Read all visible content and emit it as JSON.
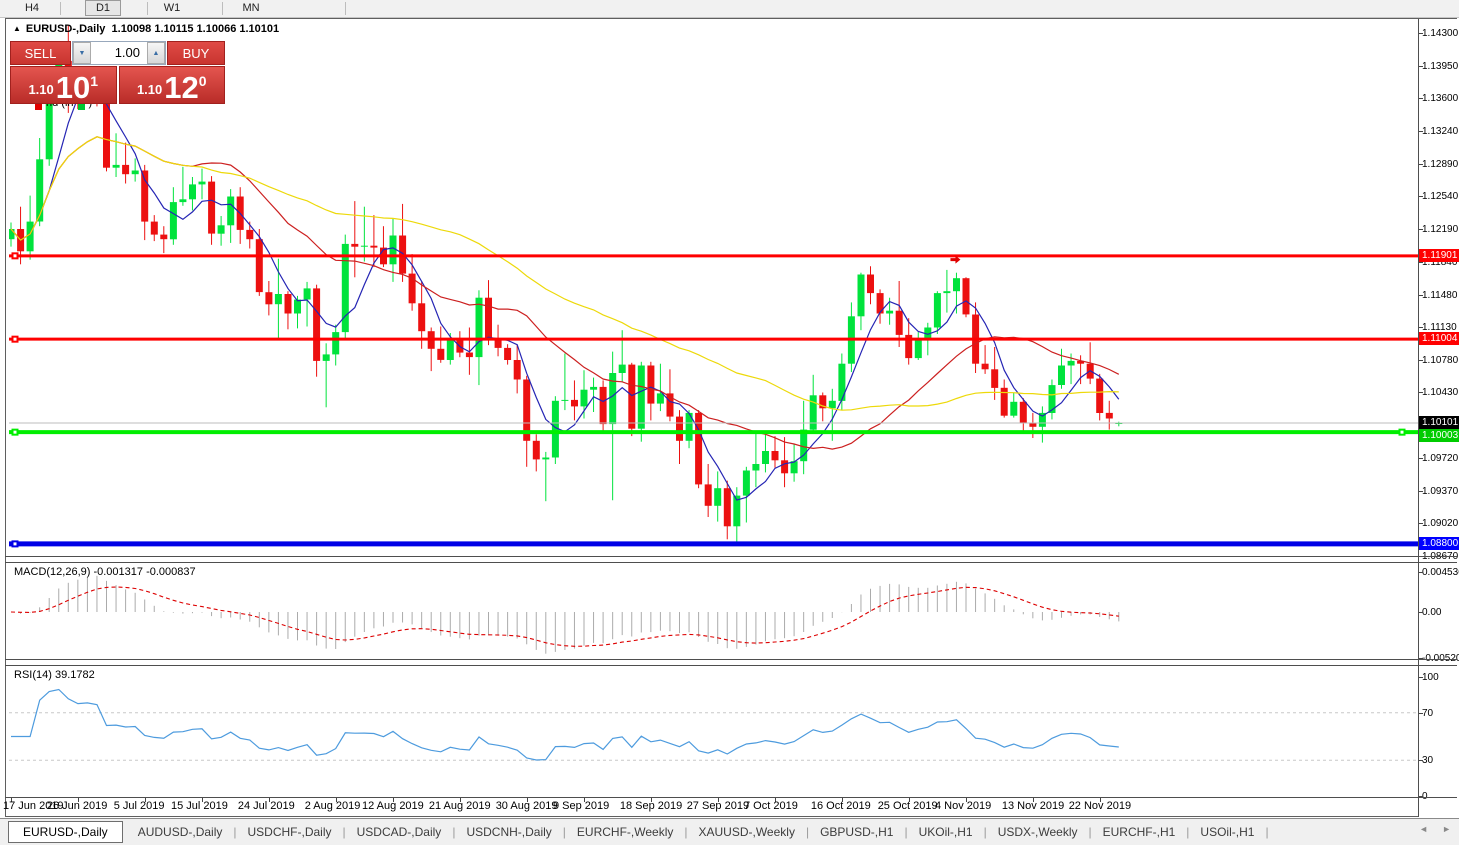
{
  "toolbar": {
    "timeframes": [
      {
        "label": "H4",
        "active": false
      },
      {
        "label": "D1",
        "active": true
      },
      {
        "label": "W1",
        "active": false
      },
      {
        "label": "MN",
        "active": false
      }
    ]
  },
  "chart_header": {
    "marker": "▲",
    "symbol": "EURUSD-,Daily",
    "ohlc": "1.10098 1.10115 1.10066 1.10101"
  },
  "trade_panel": {
    "sell_label": "SELL",
    "buy_label": "BUY",
    "volume": "1.00",
    "spin_down": "▼",
    "spin_up": "▲",
    "sell_small": "1.10",
    "sell_big": "10",
    "sell_sup": "1",
    "buy_small": "1.10",
    "buy_big": "12",
    "buy_sup": "0"
  },
  "obscured_label": {
    "fragment_left": "nd (in",
    "fragment_right": ")",
    "red_swatch": "#E00000",
    "green_swatch": "#00C830"
  },
  "price_axis": {
    "tick_values": [
      1.143,
      1.1395,
      1.136,
      1.1324,
      1.1289,
      1.1254,
      1.1219,
      1.1184,
      1.1148,
      1.1113,
      1.1078,
      1.1043,
      1.1008,
      1.0972,
      1.0937,
      1.0902,
      1.0867
    ],
    "badges": [
      {
        "text": "1.11901",
        "price": 1.11901,
        "bg": "#FF0000",
        "fg": "#FFFFFF",
        "dy": -7
      },
      {
        "text": "1.11004",
        "price": 1.11004,
        "bg": "#FF0000",
        "fg": "#FFFFFF",
        "dy": -7
      },
      {
        "text": "1.10101",
        "price": 1.10101,
        "bg": "#000000",
        "fg": "#FFFFFF",
        "dy": -7
      },
      {
        "text": "1.10003",
        "price": 1.10003,
        "bg": "#00CC00",
        "fg": "#FFFFFF",
        "dy": -3
      },
      {
        "text": "1.08800",
        "price": 1.088,
        "bg": "#0000FF",
        "fg": "#FFFFFF",
        "dy": -7
      }
    ]
  },
  "chart_data": [
    {
      "type": "candlestick",
      "title": "EURUSD-,Daily",
      "bull_color": "#00E33C",
      "bear_color": "#EC1010",
      "y_range": [
        1.0867,
        1.143
      ],
      "candles": [
        [
          1.1208,
          1.1226,
          1.12,
          1.1219
        ],
        [
          1.1219,
          1.1243,
          1.1181,
          1.1195
        ],
        [
          1.1195,
          1.1255,
          1.1186,
          1.1227
        ],
        [
          1.1227,
          1.1317,
          1.1222,
          1.1294
        ],
        [
          1.1294,
          1.1378,
          1.1287,
          1.1366
        ],
        [
          1.1366,
          1.1412,
          1.1362,
          1.14
        ],
        [
          1.14,
          1.1438,
          1.1344,
          1.1378
        ],
        [
          1.1378,
          1.1391,
          1.1348,
          1.1365
        ],
        [
          1.1365,
          1.1389,
          1.136,
          1.1372
        ],
        [
          1.1372,
          1.1391,
          1.1351,
          1.1367
        ],
        [
          1.1367,
          1.137,
          1.1281,
          1.1285
        ],
        [
          1.1285,
          1.1322,
          1.1275,
          1.1288
        ],
        [
          1.1288,
          1.1312,
          1.1268,
          1.1278
        ],
        [
          1.1278,
          1.1295,
          1.127,
          1.1282
        ],
        [
          1.1282,
          1.1288,
          1.1207,
          1.1227
        ],
        [
          1.1227,
          1.1234,
          1.1206,
          1.1213
        ],
        [
          1.1213,
          1.1222,
          1.1193,
          1.1208
        ],
        [
          1.1208,
          1.1264,
          1.1202,
          1.1248
        ],
        [
          1.1248,
          1.1286,
          1.1244,
          1.1251
        ],
        [
          1.1251,
          1.1275,
          1.1239,
          1.1267
        ],
        [
          1.1267,
          1.1284,
          1.1251,
          1.127
        ],
        [
          1.127,
          1.1276,
          1.1202,
          1.1214
        ],
        [
          1.1214,
          1.1233,
          1.1201,
          1.1223
        ],
        [
          1.1223,
          1.1262,
          1.1204,
          1.1254
        ],
        [
          1.1254,
          1.1264,
          1.1203,
          1.1218
        ],
        [
          1.1218,
          1.1227,
          1.1198,
          1.1208
        ],
        [
          1.1208,
          1.1219,
          1.1147,
          1.1151
        ],
        [
          1.1151,
          1.1163,
          1.1126,
          1.1138
        ],
        [
          1.1138,
          1.1187,
          1.1101,
          1.1149
        ],
        [
          1.1149,
          1.1152,
          1.1111,
          1.1128
        ],
        [
          1.1128,
          1.1147,
          1.1112,
          1.1143
        ],
        [
          1.1143,
          1.1162,
          1.1114,
          1.1155
        ],
        [
          1.1155,
          1.1159,
          1.106,
          1.1077
        ],
        [
          1.1077,
          1.1096,
          1.1027,
          1.1084
        ],
        [
          1.1084,
          1.1116,
          1.1072,
          1.1108
        ],
        [
          1.1108,
          1.1213,
          1.1101,
          1.1203
        ],
        [
          1.1203,
          1.1249,
          1.1167,
          1.12
        ],
        [
          1.12,
          1.1243,
          1.1184,
          1.1201
        ],
        [
          1.1201,
          1.1234,
          1.1178,
          1.1199
        ],
        [
          1.1199,
          1.1222,
          1.1178,
          1.1181
        ],
        [
          1.1181,
          1.123,
          1.1162,
          1.1212
        ],
        [
          1.1212,
          1.1246,
          1.1162,
          1.1171
        ],
        [
          1.1171,
          1.1192,
          1.1131,
          1.1139
        ],
        [
          1.1139,
          1.1163,
          1.109,
          1.1109
        ],
        [
          1.1109,
          1.1113,
          1.1066,
          1.109
        ],
        [
          1.109,
          1.1114,
          1.1075,
          1.1078
        ],
        [
          1.1078,
          1.1107,
          1.1073,
          1.1099
        ],
        [
          1.1099,
          1.1109,
          1.1081,
          1.1086
        ],
        [
          1.1086,
          1.1113,
          1.1062,
          1.1081
        ],
        [
          1.1081,
          1.1153,
          1.1051,
          1.1145
        ],
        [
          1.1145,
          1.1164,
          1.1094,
          1.1101
        ],
        [
          1.1101,
          1.1116,
          1.1082,
          1.1091
        ],
        [
          1.1091,
          1.1095,
          1.1073,
          1.1078
        ],
        [
          1.1078,
          1.1094,
          1.1042,
          1.1057
        ],
        [
          1.1057,
          1.1061,
          1.0963,
          1.0991
        ],
        [
          1.0991,
          1.0998,
          1.0958,
          1.0971
        ],
        [
          1.0971,
          1.0979,
          1.0926,
          1.0973
        ],
        [
          1.0973,
          1.1039,
          1.0966,
          1.1034
        ],
        [
          1.1034,
          1.1085,
          1.1024,
          1.1035
        ],
        [
          1.1035,
          1.1056,
          1.1013,
          1.1028
        ],
        [
          1.1028,
          1.1067,
          1.1015,
          1.1046
        ],
        [
          1.1046,
          1.1059,
          1.1022,
          1.1049
        ],
        [
          1.1049,
          1.1056,
          1.1002,
          1.1009
        ],
        [
          1.1009,
          1.1087,
          1.0927,
          1.1064
        ],
        [
          1.1064,
          1.111,
          1.1054,
          1.1073
        ],
        [
          1.1073,
          1.1075,
          1.0996,
          1.1004
        ],
        [
          1.1004,
          1.1076,
          1.099,
          1.1072
        ],
        [
          1.1072,
          1.1076,
          1.1013,
          1.1031
        ],
        [
          1.1031,
          1.1074,
          1.1023,
          1.1042
        ],
        [
          1.1042,
          1.1068,
          1.1012,
          1.1017
        ],
        [
          1.1017,
          1.1024,
          1.0966,
          1.0991
        ],
        [
          1.0991,
          1.1024,
          1.0983,
          1.1021
        ],
        [
          1.1021,
          1.1024,
          1.094,
          1.0944
        ],
        [
          1.0944,
          1.0966,
          1.0909,
          1.0921
        ],
        [
          1.0921,
          1.0958,
          1.0904,
          1.094
        ],
        [
          1.094,
          1.0948,
          1.0885,
          1.0899
        ],
        [
          1.0899,
          1.0941,
          1.0879,
          1.0932
        ],
        [
          1.0932,
          1.0963,
          1.0903,
          1.0959
        ],
        [
          1.0959,
          1.0999,
          1.0941,
          1.0966
        ],
        [
          1.0966,
          1.0999,
          1.0957,
          1.098
        ],
        [
          1.098,
          1.0996,
          1.0962,
          1.097
        ],
        [
          1.097,
          1.0995,
          1.0941,
          1.0956
        ],
        [
          1.0956,
          1.0987,
          1.0947,
          1.0969
        ],
        [
          1.0969,
          1.1034,
          1.0955,
          1.1003
        ],
        [
          1.1003,
          1.1062,
          1.1002,
          1.104
        ],
        [
          1.104,
          1.1043,
          1.1012,
          1.1026
        ],
        [
          1.1026,
          1.1047,
          1.0991,
          1.1034
        ],
        [
          1.1034,
          1.1085,
          1.1024,
          1.1074
        ],
        [
          1.1074,
          1.114,
          1.1065,
          1.1125
        ],
        [
          1.1125,
          1.1172,
          1.111,
          1.117
        ],
        [
          1.117,
          1.1179,
          1.1138,
          1.115
        ],
        [
          1.115,
          1.1154,
          1.1117,
          1.1128
        ],
        [
          1.1128,
          1.1145,
          1.1116,
          1.1131
        ],
        [
          1.1131,
          1.1163,
          1.1092,
          1.1105
        ],
        [
          1.1105,
          1.1123,
          1.1073,
          1.108
        ],
        [
          1.108,
          1.1108,
          1.1078,
          1.1099
        ],
        [
          1.1099,
          1.1118,
          1.1083,
          1.1113
        ],
        [
          1.1113,
          1.1152,
          1.1106,
          1.115
        ],
        [
          1.115,
          1.1175,
          1.1129,
          1.1152
        ],
        [
          1.1152,
          1.1172,
          1.1128,
          1.1166
        ],
        [
          1.1166,
          1.1167,
          1.1124,
          1.1127
        ],
        [
          1.1127,
          1.114,
          1.1064,
          1.1074
        ],
        [
          1.1074,
          1.1094,
          1.1063,
          1.1068
        ],
        [
          1.1068,
          1.1092,
          1.1035,
          1.1048
        ],
        [
          1.1048,
          1.1057,
          1.1016,
          1.1018
        ],
        [
          1.1018,
          1.1043,
          1.1016,
          1.1033
        ],
        [
          1.1033,
          1.1037,
          1.1002,
          1.101
        ],
        [
          1.101,
          1.1021,
          1.0994,
          1.1006
        ],
        [
          1.1006,
          1.1028,
          1.0989,
          1.1021
        ],
        [
          1.1021,
          1.1057,
          1.1014,
          1.1051
        ],
        [
          1.1051,
          1.109,
          1.1047,
          1.1072
        ],
        [
          1.1072,
          1.1085,
          1.1052,
          1.1077
        ],
        [
          1.1077,
          1.1083,
          1.1052,
          1.1074
        ],
        [
          1.1074,
          1.1097,
          1.1052,
          1.1058
        ],
        [
          1.1058,
          1.1063,
          1.1013,
          1.1021
        ],
        [
          1.1021,
          1.1034,
          1.1003,
          1.1015
        ],
        [
          1.10098,
          1.10115,
          1.10066,
          1.10101
        ]
      ],
      "moving_averages": [
        {
          "period": 5,
          "color": "#2525B4"
        },
        {
          "period": 20,
          "color": "#CC2020"
        },
        {
          "period": 45,
          "color": "#EDD90A"
        }
      ],
      "hlines": [
        {
          "price": 1.11901,
          "color": "#FF0000",
          "width": 3,
          "markers": [
            "left"
          ]
        },
        {
          "price": 1.11004,
          "color": "#FF0000",
          "width": 3,
          "markers": [
            "left"
          ]
        },
        {
          "price": 1.10003,
          "color": "#00EE00",
          "width": 4,
          "markers": [
            "left",
            "right"
          ]
        },
        {
          "price": 1.088,
          "color": "#0000E6",
          "width": 5,
          "markers": [
            "left"
          ]
        }
      ],
      "last_price": {
        "value": 1.10101,
        "line_color": "#BDBDBD"
      },
      "arrow_marker": {
        "index": 99,
        "price": 1.1186,
        "color": "#E00000",
        "type": "arrow-right"
      }
    },
    {
      "type": "macd-histogram",
      "label": "MACD(12,26,9) -0.001317 -0.000837",
      "params": {
        "fast": 12,
        "slow": 26,
        "signal": 9
      },
      "histogram_color": "#ABABAB",
      "signal_color": "#DD0000",
      "y_ticks": [
        {
          "value": 0.004536,
          "text": "0.004536"
        },
        {
          "value": 0,
          "text": "0.00"
        },
        {
          "value": -0.005204,
          "text": "-0.005204"
        }
      ]
    },
    {
      "type": "rsi",
      "label": "RSI(14) 39.1782",
      "period": 14,
      "color": "#4D9BDE",
      "levels": [
        70,
        30
      ],
      "level_color": "#C8C8C8",
      "y_ticks": [
        {
          "value": 100,
          "text": "100"
        },
        {
          "value": 70,
          "text": "70"
        },
        {
          "value": 30,
          "text": "30"
        },
        {
          "value": 0,
          "text": "0"
        }
      ]
    }
  ],
  "date_axis": {
    "labels": [
      {
        "text": "17 Jun 2019",
        "i": 0
      },
      {
        "text": "26 Jun 2019",
        "i": 7
      },
      {
        "text": "5 Jul 2019",
        "i": 14
      },
      {
        "text": "15 Jul 2019",
        "i": 20
      },
      {
        "text": "24 Jul 2019",
        "i": 27
      },
      {
        "text": "2 Aug 2019",
        "i": 34
      },
      {
        "text": "12 Aug 2019",
        "i": 40
      },
      {
        "text": "21 Aug 2019",
        "i": 47
      },
      {
        "text": "30 Aug 2019",
        "i": 54
      },
      {
        "text": "9 Sep 2019",
        "i": 60
      },
      {
        "text": "18 Sep 2019",
        "i": 67
      },
      {
        "text": "27 Sep 2019",
        "i": 74
      },
      {
        "text": "7 Oct 2019",
        "i": 80
      },
      {
        "text": "16 Oct 2019",
        "i": 87
      },
      {
        "text": "25 Oct 2019",
        "i": 94
      },
      {
        "text": "4 Nov 2019",
        "i": 100
      },
      {
        "text": "13 Nov 2019",
        "i": 107
      },
      {
        "text": "22 Nov 2019",
        "i": 114
      }
    ]
  },
  "tab_bar": {
    "tabs": [
      {
        "label": "EURUSD-,Daily",
        "active": true
      },
      {
        "label": "AUDUSD-,Daily",
        "active": false
      },
      {
        "label": "USDCHF-,Daily",
        "active": false
      },
      {
        "label": "USDCAD-,Daily",
        "active": false
      },
      {
        "label": "USDCNH-,Daily",
        "active": false
      },
      {
        "label": "EURCHF-,Weekly",
        "active": false
      },
      {
        "label": "XAUUSD-,Weekly",
        "active": false
      },
      {
        "label": "GBPUSD-,H1",
        "active": false
      },
      {
        "label": "UKOil-,H1",
        "active": false
      },
      {
        "label": "USDX-,Weekly",
        "active": false
      },
      {
        "label": "EURCHF-,H1",
        "active": false
      },
      {
        "label": "USOil-,H1",
        "active": false
      }
    ],
    "left_arrow": "◄",
    "right_arrow": "►"
  }
}
